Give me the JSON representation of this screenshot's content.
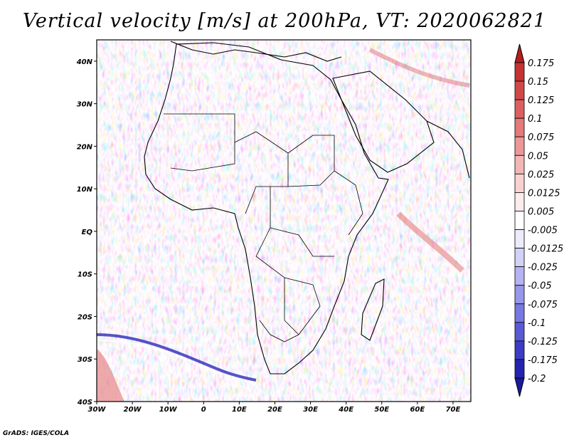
{
  "title": "Vertical velocity [m/s] at 200hPa, VT: 2020062821",
  "credit": "GrADS: IGES/COLA",
  "map": {
    "lat_labels": [
      "40N",
      "30N",
      "20N",
      "10N",
      "EQ",
      "10S",
      "20S",
      "30S",
      "40S"
    ],
    "lon_labels": [
      "30W",
      "20W",
      "10W",
      "0",
      "10E",
      "20E",
      "30E",
      "40E",
      "50E",
      "60E",
      "70E"
    ],
    "lat_range": [
      -40,
      45
    ],
    "lon_range": [
      -30,
      75
    ]
  },
  "colorbar": {
    "labels": [
      "0.175",
      "0.15",
      "0.125",
      "0.1",
      "0.075",
      "0.05",
      "0.025",
      "0.0125",
      "0.005",
      "-0.005",
      "-0.0125",
      "-0.025",
      "-0.05",
      "-0.075",
      "-0.1",
      "-0.125",
      "-0.175",
      "-0.2"
    ],
    "colors": [
      "#b41e1e",
      "#c43232",
      "#d24848",
      "#dc6060",
      "#e47a7a",
      "#ec9898",
      "#f3b6b6",
      "#f8d2d2",
      "#fcecec",
      "#ffffff",
      "#ececfc",
      "#d2d2f8",
      "#b4b4f2",
      "#9696ea",
      "#7878e2",
      "#5a5ad6",
      "#3c3cc4",
      "#2424b0",
      "#1a1aa0"
    ]
  },
  "icons": {
    "colorbar_top": "triangle-up",
    "colorbar_bottom": "triangle-down"
  }
}
